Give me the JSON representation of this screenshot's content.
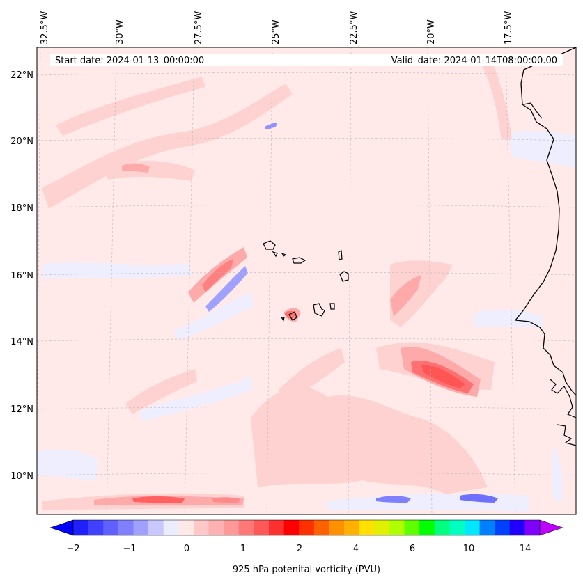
{
  "map": {
    "start_label": "Start date: 2024-01-13_00:00:00",
    "valid_label": "Valid_date: 2024-01-14T08:00:00.00",
    "lon_ticks": [
      "32.5°W",
      "30°W",
      "27.5°W",
      "25°W",
      "22.5°W",
      "20°W",
      "17.5°W"
    ],
    "lat_ticks": [
      "22°N",
      "20°N",
      "18°N",
      "16°N",
      "14°N",
      "12°N",
      "10°N"
    ],
    "features": [
      "Cape Verde islands",
      "West African coastline"
    ]
  },
  "colorbar": {
    "label": "925 hPa potenital vorticity (PVU)",
    "tick_labels": [
      "−2",
      "−1",
      "0",
      "1",
      "2",
      "4",
      "6",
      "10",
      "14"
    ],
    "colors": [
      "#0000ff",
      "#2020ff",
      "#4040ff",
      "#6060ff",
      "#8080ff",
      "#a0a0ff",
      "#c8c8ff",
      "#ececff",
      "#ffe8e8",
      "#ffc8c8",
      "#ffb0b0",
      "#ff9898",
      "#ff7878",
      "#ff5858",
      "#ff3030",
      "#ff0000",
      "#ff3000",
      "#ff6000",
      "#ff9000",
      "#ffb000",
      "#ffe000",
      "#e0f000",
      "#b0ff00",
      "#60ff00",
      "#00ff00",
      "#00ff80",
      "#00ffc0",
      "#00e8ff",
      "#0080ff",
      "#0040ff",
      "#2000ff",
      "#8000ff",
      "#c000ff"
    ]
  }
}
